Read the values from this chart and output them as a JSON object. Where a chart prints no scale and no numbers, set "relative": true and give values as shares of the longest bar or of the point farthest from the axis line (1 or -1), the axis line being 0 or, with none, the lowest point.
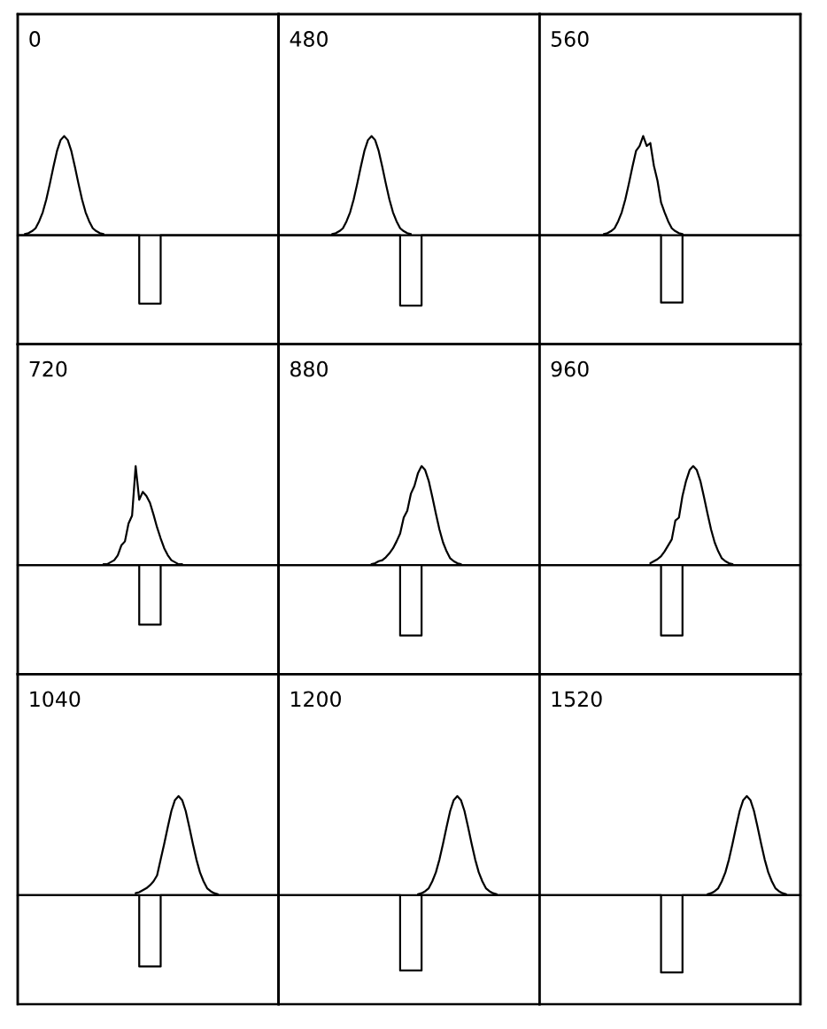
{
  "chart_data": [
    {
      "type": "line",
      "title": "0",
      "relative": true,
      "categories": [
        null,
        null,
        null,
        null,
        null,
        null,
        null,
        null,
        null,
        null,
        null,
        null,
        null,
        null,
        null,
        null,
        null,
        null,
        null,
        null,
        null,
        null,
        null,
        null,
        null,
        null,
        null,
        null,
        null,
        null,
        null,
        null,
        null,
        null,
        null,
        null,
        null,
        null,
        null,
        null,
        null,
        null,
        null,
        null,
        null,
        null,
        null,
        null,
        null,
        null,
        null,
        null,
        null,
        null,
        null,
        null,
        null,
        null,
        null,
        null,
        null,
        null,
        null,
        null,
        null,
        null,
        null,
        null,
        null,
        null,
        null,
        null,
        null,
        null
      ],
      "series": [
        {
          "type": "step",
          "color": "#000000",
          "values": [
            0,
            0,
            0,
            0,
            0,
            0,
            0,
            0,
            0,
            0,
            0,
            0,
            0,
            0,
            0,
            0,
            0,
            0,
            0,
            0,
            0,
            0,
            0,
            0,
            0,
            0,
            0,
            0,
            0,
            0,
            0,
            0,
            0,
            0,
            -0.69,
            -0.69,
            -0.69,
            -0.69,
            -0.69,
            -0.69,
            0,
            0,
            0,
            0,
            0,
            0,
            0,
            0,
            0,
            0,
            0,
            0,
            0,
            0,
            0,
            0,
            0,
            0,
            0,
            0,
            0,
            0,
            0,
            0,
            0,
            0,
            0,
            0,
            0,
            0,
            0,
            0,
            0,
            0
          ]
        },
        {
          "color": "#000000",
          "values": [
            null,
            null,
            0.01,
            0.02,
            0.04,
            0.07,
            0.14,
            0.23,
            0.36,
            0.52,
            0.69,
            0.85,
            0.96,
            1,
            0.96,
            0.85,
            0.69,
            0.52,
            0.36,
            0.23,
            0.14,
            0.07,
            0.04,
            0.02,
            0.01,
            null,
            null,
            null,
            null,
            null,
            null,
            null,
            null,
            null,
            null,
            null,
            null,
            null,
            null,
            null,
            null,
            null,
            null,
            null,
            null,
            null,
            null,
            null,
            null,
            null,
            null,
            null,
            null,
            null,
            null,
            null,
            null,
            null,
            null,
            null,
            null,
            null,
            null,
            null,
            null,
            null,
            null,
            null,
            null,
            null,
            null,
            null,
            null,
            null
          ]
        }
      ]
    },
    {
      "type": "line",
      "title": "480",
      "relative": true,
      "categories": [
        null,
        null,
        null,
        null,
        null,
        null,
        null,
        null,
        null,
        null,
        null,
        null,
        null,
        null,
        null,
        null,
        null,
        null,
        null,
        null,
        null,
        null,
        null,
        null,
        null,
        null,
        null,
        null,
        null,
        null,
        null,
        null,
        null,
        null,
        null,
        null,
        null,
        null,
        null,
        null,
        null,
        null,
        null,
        null,
        null,
        null,
        null,
        null,
        null,
        null,
        null,
        null,
        null,
        null,
        null,
        null,
        null,
        null,
        null,
        null,
        null,
        null,
        null,
        null,
        null,
        null,
        null,
        null,
        null,
        null,
        null,
        null,
        null,
        null
      ],
      "series": [
        {
          "type": "step",
          "color": "#000000",
          "values": [
            0,
            0,
            0,
            0,
            0,
            0,
            0,
            0,
            0,
            0,
            0,
            0,
            0,
            0,
            0,
            0,
            0,
            0,
            0,
            0,
            0,
            0,
            0,
            0,
            0,
            0,
            0,
            0,
            0,
            0,
            0,
            0,
            0,
            0,
            -0.71,
            -0.71,
            -0.71,
            -0.71,
            -0.71,
            -0.71,
            0,
            0,
            0,
            0,
            0,
            0,
            0,
            0,
            0,
            0,
            0,
            0,
            0,
            0,
            0,
            0,
            0,
            0,
            0,
            0,
            0,
            0,
            0,
            0,
            0,
            0,
            0,
            0,
            0,
            0,
            0,
            0,
            0,
            0
          ]
        },
        {
          "color": "#000000",
          "values": [
            null,
            null,
            null,
            null,
            null,
            null,
            null,
            null,
            null,
            null,
            null,
            null,
            null,
            null,
            null,
            0.01,
            0.02,
            0.04,
            0.07,
            0.14,
            0.23,
            0.36,
            0.52,
            0.69,
            0.85,
            0.96,
            1,
            0.96,
            0.85,
            0.69,
            0.52,
            0.36,
            0.23,
            0.14,
            0.07,
            0.04,
            0.02,
            0.01,
            null,
            null,
            null,
            null,
            null,
            null,
            null,
            null,
            null,
            null,
            null,
            null,
            null,
            null,
            null,
            null,
            null,
            null,
            null,
            null,
            null,
            null,
            null,
            null,
            null,
            null,
            null,
            null,
            null,
            null,
            null,
            null,
            null,
            null,
            null,
            null
          ]
        }
      ]
    },
    {
      "type": "line",
      "title": "560",
      "relative": true,
      "categories": [
        null,
        null,
        null,
        null,
        null,
        null,
        null,
        null,
        null,
        null,
        null,
        null,
        null,
        null,
        null,
        null,
        null,
        null,
        null,
        null,
        null,
        null,
        null,
        null,
        null,
        null,
        null,
        null,
        null,
        null,
        null,
        null,
        null,
        null,
        null,
        null,
        null,
        null,
        null,
        null,
        null,
        null,
        null,
        null,
        null,
        null,
        null,
        null,
        null,
        null,
        null,
        null,
        null,
        null,
        null,
        null,
        null,
        null,
        null,
        null,
        null,
        null,
        null,
        null,
        null,
        null,
        null,
        null,
        null,
        null,
        null,
        null,
        null,
        null
      ],
      "series": [
        {
          "type": "step",
          "color": "#000000",
          "values": [
            0,
            0,
            0,
            0,
            0,
            0,
            0,
            0,
            0,
            0,
            0,
            0,
            0,
            0,
            0,
            0,
            0,
            0,
            0,
            0,
            0,
            0,
            0,
            0,
            0,
            0,
            0,
            0,
            0,
            0,
            0,
            0,
            0,
            0,
            -0.68,
            -0.68,
            -0.68,
            -0.68,
            -0.68,
            -0.68,
            0,
            0,
            0,
            0,
            0,
            0,
            0,
            0,
            0,
            0,
            0,
            0,
            0,
            0,
            0,
            0,
            0,
            0,
            0,
            0,
            0,
            0,
            0,
            0,
            0,
            0,
            0,
            0,
            0,
            0,
            0,
            0,
            0,
            0
          ]
        },
        {
          "color": "#000000",
          "values": [
            null,
            null,
            null,
            null,
            null,
            null,
            null,
            null,
            null,
            null,
            null,
            null,
            null,
            null,
            null,
            null,
            null,
            null,
            0.01,
            0.02,
            0.04,
            0.07,
            0.14,
            0.23,
            0.36,
            0.52,
            0.69,
            0.85,
            0.9,
            1,
            0.9,
            0.93,
            0.7,
            0.55,
            0.33,
            0.23,
            0.14,
            0.07,
            0.04,
            0.02,
            0.01,
            null,
            null,
            null,
            null,
            null,
            null,
            null,
            null,
            null,
            null,
            null,
            null,
            null,
            null,
            null,
            null,
            null,
            null,
            null,
            null,
            null,
            null,
            null,
            null,
            null,
            null,
            null,
            null,
            null,
            null,
            null,
            null,
            null
          ]
        }
      ]
    },
    {
      "type": "line",
      "title": "720",
      "relative": true,
      "categories": [
        null,
        null,
        null,
        null,
        null,
        null,
        null,
        null,
        null,
        null,
        null,
        null,
        null,
        null,
        null,
        null,
        null,
        null,
        null,
        null,
        null,
        null,
        null,
        null,
        null,
        null,
        null,
        null,
        null,
        null,
        null,
        null,
        null,
        null,
        null,
        null,
        null,
        null,
        null,
        null,
        null,
        null,
        null,
        null,
        null,
        null,
        null,
        null,
        null,
        null,
        null,
        null,
        null,
        null,
        null,
        null,
        null,
        null,
        null,
        null,
        null,
        null,
        null,
        null,
        null,
        null,
        null,
        null,
        null,
        null,
        null,
        null,
        null,
        null
      ],
      "series": [
        {
          "type": "step",
          "color": "#000000",
          "values": [
            0,
            0,
            0,
            0,
            0,
            0,
            0,
            0,
            0,
            0,
            0,
            0,
            0,
            0,
            0,
            0,
            0,
            0,
            0,
            0,
            0,
            0,
            0,
            0,
            0,
            0,
            0,
            0,
            0,
            0,
            0,
            0,
            0,
            0,
            -0.6,
            -0.6,
            -0.6,
            -0.6,
            -0.6,
            -0.6,
            0,
            0,
            0,
            0,
            0,
            0,
            0,
            0,
            0,
            0,
            0,
            0,
            0,
            0,
            0,
            0,
            0,
            0,
            0,
            0,
            0,
            0,
            0,
            0,
            0,
            0,
            0,
            0,
            0,
            0,
            0,
            0,
            0,
            0
          ]
        },
        {
          "color": "#000000",
          "values": [
            null,
            null,
            null,
            null,
            null,
            null,
            null,
            null,
            null,
            null,
            null,
            null,
            null,
            null,
            null,
            null,
            null,
            null,
            null,
            null,
            null,
            null,
            null,
            null,
            0.01,
            0.01,
            0.03,
            0.05,
            0.1,
            0.2,
            0.24,
            0.42,
            0.5,
            1,
            0.66,
            0.74,
            0.7,
            0.63,
            0.51,
            0.38,
            0.27,
            0.17,
            0.1,
            0.05,
            0.03,
            0.01,
            0.01,
            null,
            null,
            null,
            null,
            null,
            null,
            null,
            null,
            null,
            null,
            null,
            null,
            null,
            null,
            null,
            null,
            null,
            null,
            null,
            null,
            null,
            null,
            null,
            null,
            null,
            null,
            null
          ]
        }
      ]
    },
    {
      "type": "line",
      "title": "880",
      "relative": true,
      "categories": [
        null,
        null,
        null,
        null,
        null,
        null,
        null,
        null,
        null,
        null,
        null,
        null,
        null,
        null,
        null,
        null,
        null,
        null,
        null,
        null,
        null,
        null,
        null,
        null,
        null,
        null,
        null,
        null,
        null,
        null,
        null,
        null,
        null,
        null,
        null,
        null,
        null,
        null,
        null,
        null,
        null,
        null,
        null,
        null,
        null,
        null,
        null,
        null,
        null,
        null,
        null,
        null,
        null,
        null,
        null,
        null,
        null,
        null,
        null,
        null,
        null,
        null,
        null,
        null,
        null,
        null,
        null,
        null,
        null,
        null,
        null,
        null,
        null,
        null
      ],
      "series": [
        {
          "type": "step",
          "color": "#000000",
          "values": [
            0,
            0,
            0,
            0,
            0,
            0,
            0,
            0,
            0,
            0,
            0,
            0,
            0,
            0,
            0,
            0,
            0,
            0,
            0,
            0,
            0,
            0,
            0,
            0,
            0,
            0,
            0,
            0,
            0,
            0,
            0,
            0,
            0,
            0,
            -0.71,
            -0.71,
            -0.71,
            -0.71,
            -0.71,
            -0.71,
            0,
            0,
            0,
            0,
            0,
            0,
            0,
            0,
            0,
            0,
            0,
            0,
            0,
            0,
            0,
            0,
            0,
            0,
            0,
            0,
            0,
            0,
            0,
            0,
            0,
            0,
            0,
            0,
            0,
            0,
            0,
            0,
            0,
            0
          ]
        },
        {
          "color": "#000000",
          "values": [
            null,
            null,
            null,
            null,
            null,
            null,
            null,
            null,
            null,
            null,
            null,
            null,
            null,
            null,
            null,
            null,
            null,
            null,
            null,
            null,
            null,
            null,
            null,
            null,
            null,
            null,
            0.01,
            0.02,
            0.04,
            0.05,
            0.08,
            0.12,
            0.17,
            0.24,
            0.32,
            0.48,
            0.55,
            0.72,
            0.8,
            0.93,
            1,
            0.96,
            0.85,
            0.69,
            0.52,
            0.36,
            0.23,
            0.14,
            0.07,
            0.04,
            0.02,
            0.01,
            null,
            null,
            null,
            null,
            null,
            null,
            null,
            null,
            null,
            null,
            null,
            null,
            null,
            null,
            null,
            null,
            null,
            null,
            null,
            null,
            null,
            null
          ]
        }
      ]
    },
    {
      "type": "line",
      "title": "960",
      "relative": true,
      "categories": [
        null,
        null,
        null,
        null,
        null,
        null,
        null,
        null,
        null,
        null,
        null,
        null,
        null,
        null,
        null,
        null,
        null,
        null,
        null,
        null,
        null,
        null,
        null,
        null,
        null,
        null,
        null,
        null,
        null,
        null,
        null,
        null,
        null,
        null,
        null,
        null,
        null,
        null,
        null,
        null,
        null,
        null,
        null,
        null,
        null,
        null,
        null,
        null,
        null,
        null,
        null,
        null,
        null,
        null,
        null,
        null,
        null,
        null,
        null,
        null,
        null,
        null,
        null,
        null,
        null,
        null,
        null,
        null,
        null,
        null,
        null,
        null,
        null,
        null
      ],
      "series": [
        {
          "type": "step",
          "color": "#000000",
          "values": [
            0,
            0,
            0,
            0,
            0,
            0,
            0,
            0,
            0,
            0,
            0,
            0,
            0,
            0,
            0,
            0,
            0,
            0,
            0,
            0,
            0,
            0,
            0,
            0,
            0,
            0,
            0,
            0,
            0,
            0,
            0,
            0,
            0,
            0,
            -0.71,
            -0.71,
            -0.71,
            -0.71,
            -0.71,
            -0.71,
            0,
            0,
            0,
            0,
            0,
            0,
            0,
            0,
            0,
            0,
            0,
            0,
            0,
            0,
            0,
            0,
            0,
            0,
            0,
            0,
            0,
            0,
            0,
            0,
            0,
            0,
            0,
            0,
            0,
            0,
            0,
            0,
            0,
            0
          ]
        },
        {
          "color": "#000000",
          "values": [
            null,
            null,
            null,
            null,
            null,
            null,
            null,
            null,
            null,
            null,
            null,
            null,
            null,
            null,
            null,
            null,
            null,
            null,
            null,
            null,
            null,
            null,
            null,
            null,
            null,
            null,
            null,
            null,
            null,
            null,
            null,
            0.02,
            0.04,
            0.06,
            0.09,
            0.14,
            0.2,
            0.26,
            0.45,
            0.48,
            0.7,
            0.85,
            0.96,
            1,
            0.96,
            0.85,
            0.69,
            0.52,
            0.36,
            0.23,
            0.14,
            0.07,
            0.04,
            0.02,
            0.01,
            null,
            null,
            null,
            null,
            null,
            null,
            null,
            null,
            null,
            null,
            null,
            null,
            null,
            null,
            null,
            null,
            null,
            null,
            null
          ]
        }
      ]
    },
    {
      "type": "line",
      "title": "1040",
      "relative": true,
      "categories": [
        null,
        null,
        null,
        null,
        null,
        null,
        null,
        null,
        null,
        null,
        null,
        null,
        null,
        null,
        null,
        null,
        null,
        null,
        null,
        null,
        null,
        null,
        null,
        null,
        null,
        null,
        null,
        null,
        null,
        null,
        null,
        null,
        null,
        null,
        null,
        null,
        null,
        null,
        null,
        null,
        null,
        null,
        null,
        null,
        null,
        null,
        null,
        null,
        null,
        null,
        null,
        null,
        null,
        null,
        null,
        null,
        null,
        null,
        null,
        null,
        null,
        null,
        null,
        null,
        null,
        null,
        null,
        null,
        null,
        null,
        null,
        null,
        null,
        null
      ],
      "series": [
        {
          "type": "step",
          "color": "#000000",
          "values": [
            0,
            0,
            0,
            0,
            0,
            0,
            0,
            0,
            0,
            0,
            0,
            0,
            0,
            0,
            0,
            0,
            0,
            0,
            0,
            0,
            0,
            0,
            0,
            0,
            0,
            0,
            0,
            0,
            0,
            0,
            0,
            0,
            0,
            0,
            -0.72,
            -0.72,
            -0.72,
            -0.72,
            -0.72,
            -0.72,
            0,
            0,
            0,
            0,
            0,
            0,
            0,
            0,
            0,
            0,
            0,
            0,
            0,
            0,
            0,
            0,
            0,
            0,
            0,
            0,
            0,
            0,
            0,
            0,
            0,
            0,
            0,
            0,
            0,
            0,
            0,
            0,
            0,
            0
          ]
        },
        {
          "color": "#000000",
          "values": [
            null,
            null,
            null,
            null,
            null,
            null,
            null,
            null,
            null,
            null,
            null,
            null,
            null,
            null,
            null,
            null,
            null,
            null,
            null,
            null,
            null,
            null,
            null,
            null,
            null,
            null,
            null,
            null,
            null,
            null,
            null,
            null,
            null,
            0.02,
            0.03,
            0.05,
            0.07,
            0.1,
            0.14,
            0.2,
            0.36,
            0.52,
            0.69,
            0.85,
            0.96,
            1,
            0.96,
            0.85,
            0.69,
            0.52,
            0.36,
            0.23,
            0.14,
            0.07,
            0.04,
            0.02,
            0.01,
            null,
            null,
            null,
            null,
            null,
            null,
            null,
            null,
            null,
            null,
            null,
            null,
            null,
            null,
            null,
            null,
            null
          ]
        }
      ]
    },
    {
      "type": "line",
      "title": "1200",
      "relative": true,
      "categories": [
        null,
        null,
        null,
        null,
        null,
        null,
        null,
        null,
        null,
        null,
        null,
        null,
        null,
        null,
        null,
        null,
        null,
        null,
        null,
        null,
        null,
        null,
        null,
        null,
        null,
        null,
        null,
        null,
        null,
        null,
        null,
        null,
        null,
        null,
        null,
        null,
        null,
        null,
        null,
        null,
        null,
        null,
        null,
        null,
        null,
        null,
        null,
        null,
        null,
        null,
        null,
        null,
        null,
        null,
        null,
        null,
        null,
        null,
        null,
        null,
        null,
        null,
        null,
        null,
        null,
        null,
        null,
        null,
        null,
        null,
        null,
        null,
        null,
        null
      ],
      "series": [
        {
          "type": "step",
          "color": "#000000",
          "values": [
            0,
            0,
            0,
            0,
            0,
            0,
            0,
            0,
            0,
            0,
            0,
            0,
            0,
            0,
            0,
            0,
            0,
            0,
            0,
            0,
            0,
            0,
            0,
            0,
            0,
            0,
            0,
            0,
            0,
            0,
            0,
            0,
            0,
            0,
            -0.76,
            -0.76,
            -0.76,
            -0.76,
            -0.76,
            -0.76,
            0,
            0,
            0,
            0,
            0,
            0,
            0,
            0,
            0,
            0,
            0,
            0,
            0,
            0,
            0,
            0,
            0,
            0,
            0,
            0,
            0,
            0,
            0,
            0,
            0,
            0,
            0,
            0,
            0,
            0,
            0,
            0,
            0,
            0
          ]
        },
        {
          "color": "#000000",
          "values": [
            null,
            null,
            null,
            null,
            null,
            null,
            null,
            null,
            null,
            null,
            null,
            null,
            null,
            null,
            null,
            null,
            null,
            null,
            null,
            null,
            null,
            null,
            null,
            null,
            null,
            null,
            null,
            null,
            null,
            null,
            null,
            null,
            null,
            null,
            null,
            null,
            null,
            null,
            null,
            0.01,
            0.02,
            0.04,
            0.07,
            0.14,
            0.23,
            0.36,
            0.52,
            0.69,
            0.85,
            0.96,
            1,
            0.96,
            0.85,
            0.69,
            0.52,
            0.36,
            0.23,
            0.14,
            0.07,
            0.04,
            0.02,
            0.01,
            null,
            null,
            null,
            null,
            null,
            null,
            null,
            null,
            null,
            null,
            null,
            null
          ]
        }
      ]
    },
    {
      "type": "line",
      "title": "1520",
      "relative": true,
      "categories": [
        null,
        null,
        null,
        null,
        null,
        null,
        null,
        null,
        null,
        null,
        null,
        null,
        null,
        null,
        null,
        null,
        null,
        null,
        null,
        null,
        null,
        null,
        null,
        null,
        null,
        null,
        null,
        null,
        null,
        null,
        null,
        null,
        null,
        null,
        null,
        null,
        null,
        null,
        null,
        null,
        null,
        null,
        null,
        null,
        null,
        null,
        null,
        null,
        null,
        null,
        null,
        null,
        null,
        null,
        null,
        null,
        null,
        null,
        null,
        null,
        null,
        null,
        null,
        null,
        null,
        null,
        null,
        null,
        null,
        null,
        null,
        null,
        null,
        null
      ],
      "series": [
        {
          "type": "step",
          "color": "#000000",
          "values": [
            0,
            0,
            0,
            0,
            0,
            0,
            0,
            0,
            0,
            0,
            0,
            0,
            0,
            0,
            0,
            0,
            0,
            0,
            0,
            0,
            0,
            0,
            0,
            0,
            0,
            0,
            0,
            0,
            0,
            0,
            0,
            0,
            0,
            0,
            -0.78,
            -0.78,
            -0.78,
            -0.78,
            -0.78,
            -0.78,
            0,
            0,
            0,
            0,
            0,
            0,
            0,
            0,
            0,
            0,
            0,
            0,
            0,
            0,
            0,
            0,
            0,
            0,
            0,
            0,
            0,
            0,
            0,
            0,
            0,
            0,
            0,
            0,
            0,
            0,
            0,
            0,
            0,
            0
          ]
        },
        {
          "color": "#000000",
          "values": [
            null,
            null,
            null,
            null,
            null,
            null,
            null,
            null,
            null,
            null,
            null,
            null,
            null,
            null,
            null,
            null,
            null,
            null,
            null,
            null,
            null,
            null,
            null,
            null,
            null,
            null,
            null,
            null,
            null,
            null,
            null,
            null,
            null,
            null,
            null,
            null,
            null,
            null,
            null,
            null,
            null,
            null,
            null,
            null,
            null,
            null,
            null,
            0.01,
            0.02,
            0.04,
            0.07,
            0.14,
            0.23,
            0.36,
            0.52,
            0.69,
            0.85,
            0.96,
            1,
            0.96,
            0.85,
            0.69,
            0.52,
            0.36,
            0.23,
            0.14,
            0.07,
            0.04,
            0.02,
            0.01,
            null,
            null,
            null,
            null
          ]
        }
      ]
    }
  ]
}
